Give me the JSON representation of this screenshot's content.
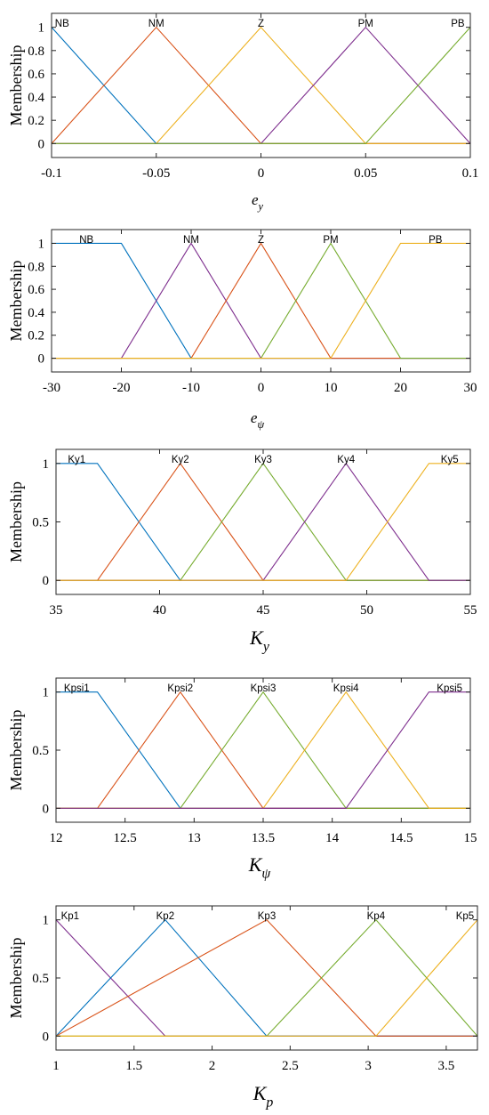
{
  "chart_data": [
    {
      "type": "line",
      "ylabel": "Membership",
      "xlabel": {
        "main": "e",
        "sub": "y"
      },
      "xlim": [
        -0.1,
        0.1
      ],
      "ylim": [
        -0.12,
        1.12
      ],
      "xticks": [
        -0.1,
        -0.05,
        0,
        0.05,
        0.1
      ],
      "xtick_labels": [
        "-0.1",
        "-0.05",
        "0",
        "0.05",
        "0.1"
      ],
      "yticks": [
        0,
        0.2,
        0.4,
        0.6,
        0.8,
        1
      ],
      "ytick_labels": [
        "0",
        "0.2",
        "0.4",
        "0.6",
        "0.8",
        "1"
      ],
      "series": [
        {
          "name": "NB",
          "color": "#0072BD",
          "points": [
            [
              -0.1,
              1
            ],
            [
              -0.05,
              0
            ],
            [
              0.1,
              0
            ]
          ],
          "label_x": -0.095
        },
        {
          "name": "NM",
          "color": "#D95319",
          "points": [
            [
              -0.1,
              0
            ],
            [
              -0.05,
              1
            ],
            [
              0,
              0
            ],
            [
              0.1,
              0
            ]
          ],
          "label_x": -0.05
        },
        {
          "name": "Z",
          "color": "#EDB120",
          "points": [
            [
              -0.1,
              0
            ],
            [
              -0.05,
              0
            ],
            [
              0,
              1
            ],
            [
              0.05,
              0
            ],
            [
              0.1,
              0
            ]
          ],
          "label_x": 0
        },
        {
          "name": "PM",
          "color": "#7E2F8E",
          "points": [
            [
              -0.1,
              0
            ],
            [
              0,
              0
            ],
            [
              0.05,
              1
            ],
            [
              0.1,
              0
            ]
          ],
          "label_x": 0.05
        },
        {
          "name": "PB",
          "color": "#77AC30",
          "points": [
            [
              -0.1,
              0
            ],
            [
              0.05,
              0
            ],
            [
              0.1,
              1
            ]
          ],
          "label_x": 0.094
        }
      ]
    },
    {
      "type": "line",
      "ylabel": "Membership",
      "xlabel": {
        "main": "e",
        "sub": "ψ"
      },
      "xlim": [
        -30,
        30
      ],
      "ylim": [
        -0.12,
        1.12
      ],
      "xticks": [
        -30,
        -20,
        -10,
        0,
        10,
        20,
        30
      ],
      "xtick_labels": [
        "-30",
        "-20",
        "-10",
        "0",
        "10",
        "20",
        "30"
      ],
      "yticks": [
        0,
        0.2,
        0.4,
        0.6,
        0.8,
        1
      ],
      "ytick_labels": [
        "0",
        "0.2",
        "0.4",
        "0.6",
        "0.8",
        "1"
      ],
      "series": [
        {
          "name": "NB",
          "color": "#0072BD",
          "points": [
            [
              -30,
              1
            ],
            [
              -20,
              1
            ],
            [
              -10,
              0
            ],
            [
              30,
              0
            ]
          ],
          "label_x": -25
        },
        {
          "name": "NM",
          "color": "#7E2F8E",
          "points": [
            [
              -30,
              0
            ],
            [
              -20,
              0
            ],
            [
              -10,
              1
            ],
            [
              0,
              0
            ],
            [
              30,
              0
            ]
          ],
          "label_x": -10
        },
        {
          "name": "Z",
          "color": "#D95319",
          "points": [
            [
              -30,
              0
            ],
            [
              -10,
              0
            ],
            [
              0,
              1
            ],
            [
              10,
              0
            ],
            [
              30,
              0
            ]
          ],
          "label_x": 0
        },
        {
          "name": "PM",
          "color": "#77AC30",
          "points": [
            [
              -30,
              0
            ],
            [
              0,
              0
            ],
            [
              10,
              1
            ],
            [
              20,
              0
            ],
            [
              30,
              0
            ]
          ],
          "label_x": 10
        },
        {
          "name": "PB",
          "color": "#EDB120",
          "points": [
            [
              -30,
              0
            ],
            [
              10,
              0
            ],
            [
              20,
              1
            ],
            [
              30,
              1
            ]
          ],
          "label_x": 25
        }
      ]
    },
    {
      "type": "line",
      "ylabel": "Membership",
      "xlabel": {
        "main": "K",
        "sub": "y"
      },
      "xlim": [
        35,
        55
      ],
      "ylim": [
        -0.12,
        1.12
      ],
      "xticks": [
        35,
        40,
        45,
        50,
        55
      ],
      "xtick_labels": [
        "35",
        "40",
        "45",
        "50",
        "55"
      ],
      "yticks": [
        0,
        0.5,
        1
      ],
      "ytick_labels": [
        "0",
        "0.5",
        "1"
      ],
      "series": [
        {
          "name": "Ky1",
          "color": "#0072BD",
          "points": [
            [
              35,
              1
            ],
            [
              37,
              1
            ],
            [
              41,
              0
            ],
            [
              55,
              0
            ]
          ],
          "label_x": 36
        },
        {
          "name": "Ky2",
          "color": "#D95319",
          "points": [
            [
              35,
              0
            ],
            [
              37,
              0
            ],
            [
              41,
              1
            ],
            [
              45,
              0
            ],
            [
              55,
              0
            ]
          ],
          "label_x": 41
        },
        {
          "name": "Ky3",
          "color": "#77AC30",
          "points": [
            [
              35,
              0
            ],
            [
              41,
              0
            ],
            [
              45,
              1
            ],
            [
              49,
              0
            ],
            [
              55,
              0
            ]
          ],
          "label_x": 45
        },
        {
          "name": "Ky4",
          "color": "#7E2F8E",
          "points": [
            [
              35,
              0
            ],
            [
              45,
              0
            ],
            [
              49,
              1
            ],
            [
              53,
              0
            ],
            [
              55,
              0
            ]
          ],
          "label_x": 49
        },
        {
          "name": "Ky5",
          "color": "#EDB120",
          "points": [
            [
              35,
              0
            ],
            [
              49,
              0
            ],
            [
              53,
              1
            ],
            [
              55,
              1
            ]
          ],
          "label_x": 54
        }
      ]
    },
    {
      "type": "line",
      "ylabel": "Membership",
      "xlabel": {
        "main": "K",
        "sub": "ψ"
      },
      "xlim": [
        12,
        15
      ],
      "ylim": [
        -0.12,
        1.12
      ],
      "xticks": [
        12,
        12.5,
        13,
        13.5,
        14,
        14.5,
        15
      ],
      "xtick_labels": [
        "12",
        "12.5",
        "13",
        "13.5",
        "14",
        "14.5",
        "15"
      ],
      "yticks": [
        0,
        0.5,
        1
      ],
      "ytick_labels": [
        "0",
        "0.5",
        "1"
      ],
      "series": [
        {
          "name": "Kpsi1",
          "color": "#0072BD",
          "points": [
            [
              12,
              1
            ],
            [
              12.3,
              1
            ],
            [
              12.9,
              0
            ],
            [
              15,
              0
            ]
          ],
          "label_x": 12.15
        },
        {
          "name": "Kpsi2",
          "color": "#D95319",
          "points": [
            [
              12,
              0
            ],
            [
              12.3,
              0
            ],
            [
              12.9,
              1
            ],
            [
              13.5,
              0
            ],
            [
              15,
              0
            ]
          ],
          "label_x": 12.9
        },
        {
          "name": "Kpsi3",
          "color": "#77AC30",
          "points": [
            [
              12,
              0
            ],
            [
              12.9,
              0
            ],
            [
              13.5,
              1
            ],
            [
              14.1,
              0
            ],
            [
              15,
              0
            ]
          ],
          "label_x": 13.5
        },
        {
          "name": "Kpsi4",
          "color": "#EDB120",
          "points": [
            [
              12,
              0
            ],
            [
              13.5,
              0
            ],
            [
              14.1,
              1
            ],
            [
              14.7,
              0
            ],
            [
              15,
              0
            ]
          ],
          "label_x": 14.1
        },
        {
          "name": "Kpsi5",
          "color": "#7E2F8E",
          "points": [
            [
              12,
              0
            ],
            [
              14.1,
              0
            ],
            [
              14.7,
              1
            ],
            [
              15,
              1
            ]
          ],
          "label_x": 14.85
        }
      ]
    },
    {
      "type": "line",
      "ylabel": "Membership",
      "xlabel": {
        "main": "K",
        "sub": "p"
      },
      "xlim": [
        1,
        3.7
      ],
      "ylim": [
        -0.12,
        1.12
      ],
      "xticks": [
        1,
        1.5,
        2,
        2.5,
        3,
        3.5
      ],
      "xtick_labels": [
        "1",
        "1.5",
        "2",
        "2.5",
        "3",
        "3.5"
      ],
      "yticks": [
        0,
        0.5,
        1
      ],
      "ytick_labels": [
        "0",
        "0.5",
        "1"
      ],
      "series": [
        {
          "name": "Kp1",
          "color": "#7E2F8E",
          "points": [
            [
              1,
              1
            ],
            [
              1.7,
              0
            ],
            [
              3.7,
              0
            ]
          ],
          "label_x": 1.09
        },
        {
          "name": "Kp2",
          "color": "#0072BD",
          "points": [
            [
              1,
              0
            ],
            [
              1.7,
              1
            ],
            [
              2.35,
              0
            ],
            [
              3.7,
              0
            ]
          ],
          "label_x": 1.7
        },
        {
          "name": "Kp3",
          "color": "#D95319",
          "points": [
            [
              1,
              0
            ],
            [
              2.35,
              1
            ],
            [
              3.05,
              0
            ],
            [
              3.7,
              0
            ]
          ],
          "label_x": 2.35
        },
        {
          "name": "Kp4",
          "color": "#77AC30",
          "points": [
            [
              1,
              0
            ],
            [
              2.35,
              0
            ],
            [
              3.05,
              1
            ],
            [
              3.7,
              0
            ]
          ],
          "label_x": 3.05
        },
        {
          "name": "Kp5",
          "color": "#EDB120",
          "points": [
            [
              1,
              0
            ],
            [
              3.05,
              0
            ],
            [
              3.7,
              1
            ]
          ],
          "label_x": 3.62
        }
      ]
    }
  ]
}
